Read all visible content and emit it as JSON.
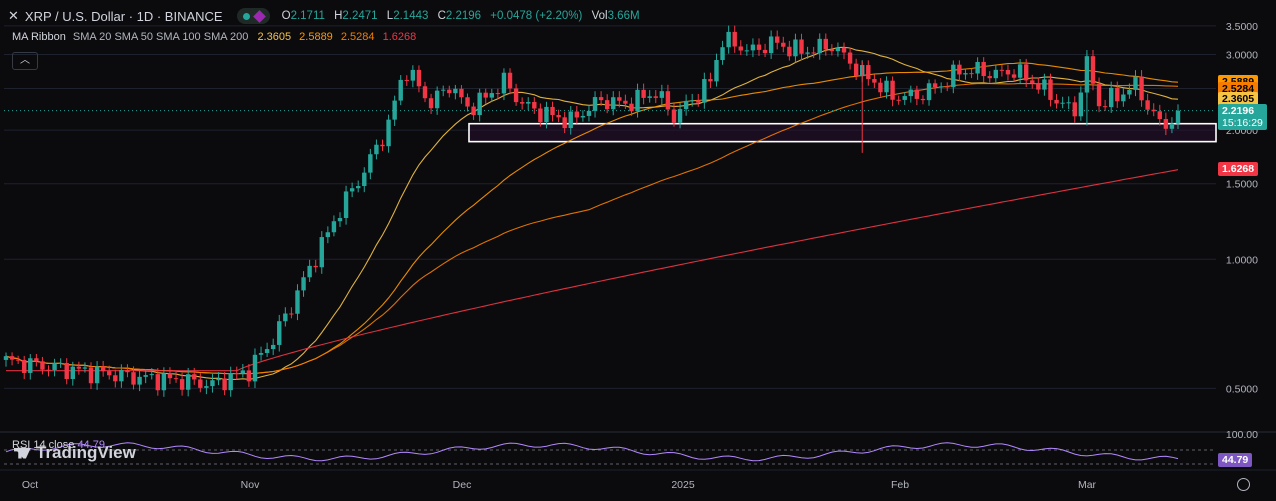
{
  "header": {
    "symbol_title": "XRP / U.S. Dollar · 1D · BINANCE",
    "open_label": "O",
    "open": "2.1711",
    "high_label": "H",
    "high": "2.2471",
    "low_label": "L",
    "low": "2.1443",
    "close_label": "C",
    "close": "2.2196",
    "change": "+0.0478 (+2.20%)",
    "vol_label": "Vol",
    "vol": "3.66M",
    "close_icon": "x-icon",
    "collapse_icon": "chevron-up-icon"
  },
  "ma_ribbon": {
    "name": "MA Ribbon",
    "params": "SMA 20 SMA 50 SMA 100 SMA 200",
    "values": [
      "2.3605",
      "2.5889",
      "2.5284",
      "1.6268"
    ],
    "colors": [
      "#f6c344",
      "#ff9800",
      "#f57c00",
      "#f23645"
    ]
  },
  "rsi": {
    "label": "RSI 14 close",
    "value": "44.79",
    "axis_top": "100.00",
    "color": "#b388ff"
  },
  "logo_text": "TradingView",
  "price_tag": {
    "price": "2.2196",
    "countdown": "15:16:29"
  },
  "colors": {
    "up": "#26a69a",
    "down": "#f23645",
    "bg": "#0b0b0e",
    "grid": "#1e222d"
  },
  "chart_data": {
    "type": "candlestick",
    "x_axis": {
      "labels": [
        "Oct",
        "Nov",
        "Dec",
        "2025",
        "Feb",
        "Mar"
      ]
    },
    "y_axis": {
      "labels": [
        "3.5000",
        "3.0000",
        "2.5000",
        "2.0000",
        "1.5000",
        "1.0000",
        "0.5000"
      ],
      "scale": "log",
      "range": [
        0.4,
        3.65
      ]
    },
    "zone": {
      "from": 1.88,
      "to": 2.07
    },
    "ma_endpoints": {
      "sma20": 2.3605,
      "sma50": 2.5889,
      "sma100": 2.5284,
      "sma200": 1.6268
    },
    "key_points": [
      {
        "date": "Oct",
        "price": 0.54
      },
      {
        "date": "Nov",
        "price": 0.51
      },
      {
        "date": "Nov 15",
        "price": 0.9
      },
      {
        "date": "Dec 3",
        "price": 2.78
      },
      {
        "date": "Dec 20",
        "price": 2.18
      },
      {
        "date": "Jan 16",
        "price": 3.25
      },
      {
        "date": "Feb 3",
        "price": 2.7
      },
      {
        "date": "Feb 3 low",
        "price": 1.77
      },
      {
        "date": "Mar 2",
        "price": 2.95
      },
      {
        "date": "Mar 10",
        "price": 2.0
      },
      {
        "date": "Mar 12",
        "price": 2.2196
      }
    ]
  }
}
